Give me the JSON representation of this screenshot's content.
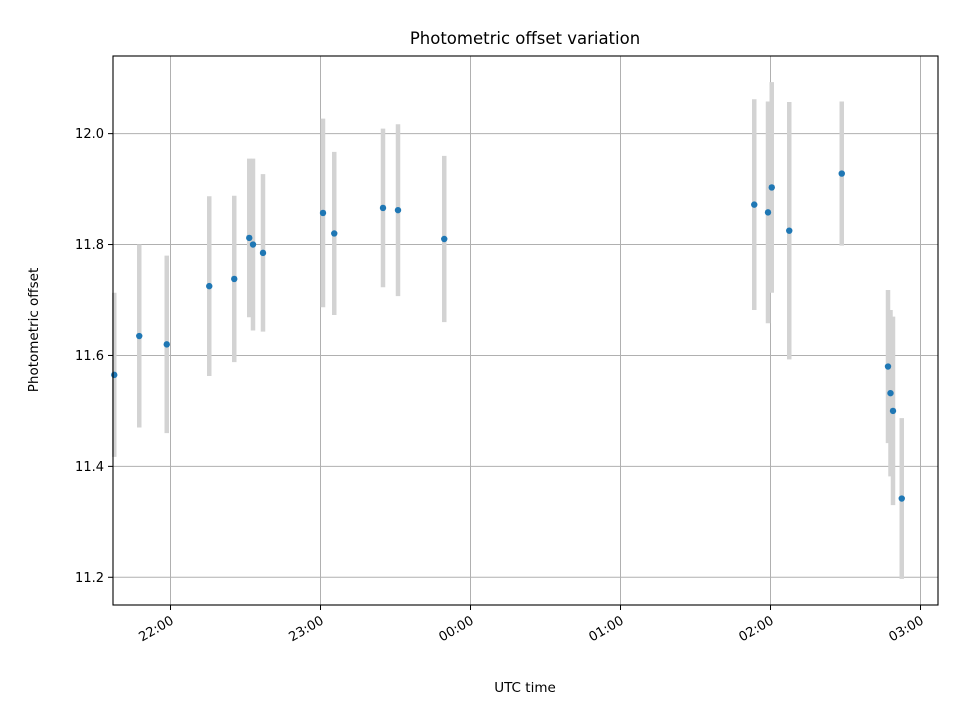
{
  "chart_data": {
    "type": "scatter",
    "title": "Photometric offset variation",
    "xlabel": "UTC time",
    "ylabel": "Photometric offset",
    "xlim": [
      "21:37",
      "03:07"
    ],
    "ylim": [
      11.15,
      12.14
    ],
    "grid": true,
    "x_ticks": [
      "22:00",
      "23:00",
      "00:00",
      "01:00",
      "02:00",
      "03:00"
    ],
    "y_ticks": [
      "11.2",
      "11.4",
      "11.6",
      "11.8",
      "12.0"
    ],
    "points": [
      {
        "x": "21:37:30",
        "y": 11.565,
        "err": 0.148
      },
      {
        "x": "21:47:30",
        "y": 11.635,
        "err": 0.165
      },
      {
        "x": "21:58:30",
        "y": 11.62,
        "err": 0.16
      },
      {
        "x": "22:15:30",
        "y": 11.725,
        "err": 0.162
      },
      {
        "x": "22:25:30",
        "y": 11.738,
        "err": 0.15
      },
      {
        "x": "22:31:30",
        "y": 11.812,
        "err": 0.143
      },
      {
        "x": "22:33:00",
        "y": 11.8,
        "err": 0.155
      },
      {
        "x": "22:37:00",
        "y": 11.785,
        "err": 0.142
      },
      {
        "x": "23:01:00",
        "y": 11.857,
        "err": 0.17
      },
      {
        "x": "23:05:30",
        "y": 11.82,
        "err": 0.147
      },
      {
        "x": "23:25:00",
        "y": 11.866,
        "err": 0.143
      },
      {
        "x": "23:31:00",
        "y": 11.862,
        "err": 0.155
      },
      {
        "x": "23:49:30",
        "y": 11.81,
        "err": 0.15
      },
      {
        "x": "01:53:30",
        "y": 11.872,
        "err": 0.19
      },
      {
        "x": "01:59:00",
        "y": 11.858,
        "err": 0.2
      },
      {
        "x": "02:00:30",
        "y": 11.903,
        "err": 0.19
      },
      {
        "x": "02:07:30",
        "y": 11.825,
        "err": 0.232
      },
      {
        "x": "02:28:30",
        "y": 11.928,
        "err": 0.13
      },
      {
        "x": "02:47:00",
        "y": 11.58,
        "err": 0.138
      },
      {
        "x": "02:48:00",
        "y": 11.532,
        "err": 0.15
      },
      {
        "x": "02:49:00",
        "y": 11.5,
        "err": 0.17
      },
      {
        "x": "02:52:30",
        "y": 11.342,
        "err": 0.145
      }
    ],
    "colors": {
      "marker": "#1f77b4",
      "errorbar": "#d3d3d3",
      "grid": "#b0b0b0"
    }
  }
}
